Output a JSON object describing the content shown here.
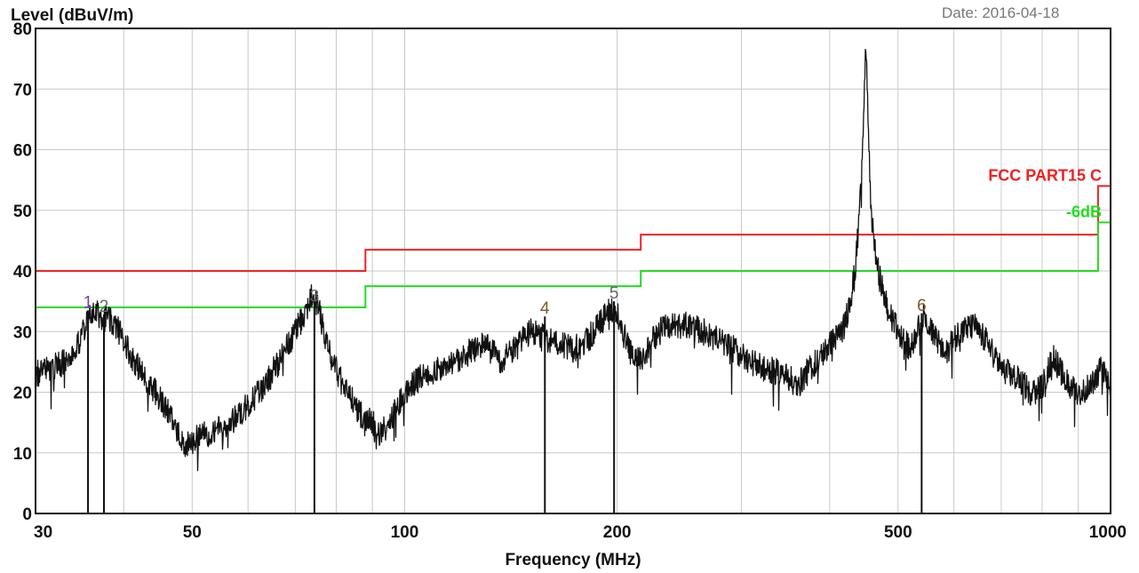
{
  "chart_data": {
    "type": "line",
    "xscale": "log",
    "xlabel": "Frequency (MHz)",
    "ylabel": "Level (dBuV/m)",
    "xlim": [
      30,
      1000
    ],
    "ylim": [
      0,
      80
    ],
    "x_ticks": [
      30,
      50,
      100,
      200,
      500,
      1000
    ],
    "y_ticks": [
      0,
      10,
      20,
      30,
      40,
      50,
      60,
      70,
      80
    ],
    "x_grid": [
      30,
      40,
      50,
      60,
      70,
      80,
      90,
      100,
      200,
      300,
      400,
      500,
      600,
      700,
      800,
      900,
      1000
    ],
    "grid": true,
    "date_text": "Date: 2016-04-18",
    "limit_lines": [
      {
        "name": "FCC PART15 C",
        "color": "#ee2222",
        "steps": [
          [
            30,
            40
          ],
          [
            88,
            40
          ],
          [
            88,
            43.5
          ],
          [
            216,
            43.5
          ],
          [
            216,
            46
          ],
          [
            960,
            46
          ],
          [
            960,
            54
          ],
          [
            1000,
            54
          ]
        ]
      },
      {
        "name": "-6dB",
        "color": "#22dd22",
        "steps": [
          [
            30,
            34
          ],
          [
            88,
            34
          ],
          [
            88,
            37.5
          ],
          [
            216,
            37.5
          ],
          [
            216,
            40
          ],
          [
            960,
            40
          ],
          [
            960,
            48
          ],
          [
            1000,
            48
          ]
        ]
      }
    ],
    "series": [
      {
        "color": "#111111",
        "anchors": [
          [
            30,
            23
          ],
          [
            31.5,
            24
          ],
          [
            33,
            25
          ],
          [
            34.5,
            28
          ],
          [
            35.5,
            32
          ],
          [
            36.5,
            33
          ],
          [
            38,
            32
          ],
          [
            39.5,
            30
          ],
          [
            41,
            26
          ],
          [
            43,
            22
          ],
          [
            45,
            19
          ],
          [
            47,
            15
          ],
          [
            49,
            11
          ],
          [
            50,
            12
          ],
          [
            52,
            13
          ],
          [
            55,
            14
          ],
          [
            58,
            16
          ],
          [
            61,
            19
          ],
          [
            64,
            22
          ],
          [
            67,
            26
          ],
          [
            70,
            30
          ],
          [
            72,
            33
          ],
          [
            74,
            36
          ],
          [
            75.5,
            34
          ],
          [
            78,
            27
          ],
          [
            81,
            22
          ],
          [
            84,
            19
          ],
          [
            87,
            16
          ],
          [
            90,
            15
          ],
          [
            92,
            13
          ],
          [
            95,
            15
          ],
          [
            98,
            18
          ],
          [
            102,
            21
          ],
          [
            107,
            23
          ],
          [
            112,
            24
          ],
          [
            118,
            25
          ],
          [
            125,
            27
          ],
          [
            130,
            28
          ],
          [
            137,
            25
          ],
          [
            143,
            27
          ],
          [
            150,
            30
          ],
          [
            158,
            29
          ],
          [
            165,
            28
          ],
          [
            172,
            27
          ],
          [
            180,
            28
          ],
          [
            188,
            31
          ],
          [
            196,
            34
          ],
          [
            200,
            33
          ],
          [
            206,
            28
          ],
          [
            212,
            25
          ],
          [
            218,
            26
          ],
          [
            225,
            29
          ],
          [
            235,
            31
          ],
          [
            250,
            31
          ],
          [
            265,
            30
          ],
          [
            285,
            28
          ],
          [
            300,
            26
          ],
          [
            320,
            24
          ],
          [
            345,
            23
          ],
          [
            360,
            21
          ],
          [
            375,
            24
          ],
          [
            395,
            27
          ],
          [
            420,
            31
          ],
          [
            435,
            40
          ],
          [
            443,
            55
          ],
          [
            447,
            67
          ],
          [
            450,
            78
          ],
          [
            453,
            65
          ],
          [
            458,
            48
          ],
          [
            468,
            40
          ],
          [
            485,
            33
          ],
          [
            500,
            30
          ],
          [
            520,
            27
          ],
          [
            545,
            33
          ],
          [
            560,
            30
          ],
          [
            580,
            26
          ],
          [
            610,
            30
          ],
          [
            640,
            31
          ],
          [
            670,
            28
          ],
          [
            700,
            24
          ],
          [
            740,
            22
          ],
          [
            770,
            20
          ],
          [
            800,
            21
          ],
          [
            830,
            26
          ],
          [
            860,
            22
          ],
          [
            900,
            20
          ],
          [
            940,
            21
          ],
          [
            970,
            24
          ],
          [
            1000,
            21
          ]
        ]
      }
    ],
    "markers": [
      {
        "label": "1",
        "x": 35.6,
        "y": 33.5,
        "color": "#7b3fa6"
      },
      {
        "label": "2",
        "x": 37.5,
        "y": 32.8,
        "color": "#666666"
      },
      {
        "label": "3",
        "x": 74.5,
        "y": 34.5,
        "color": "#666666"
      },
      {
        "label": "4",
        "x": 158,
        "y": 32.5,
        "color": "#7a5a2a"
      },
      {
        "label": "5",
        "x": 198,
        "y": 35,
        "color": "#666666"
      },
      {
        "label": "6",
        "x": 540,
        "y": 33,
        "color": "#7a5a2a"
      }
    ]
  }
}
